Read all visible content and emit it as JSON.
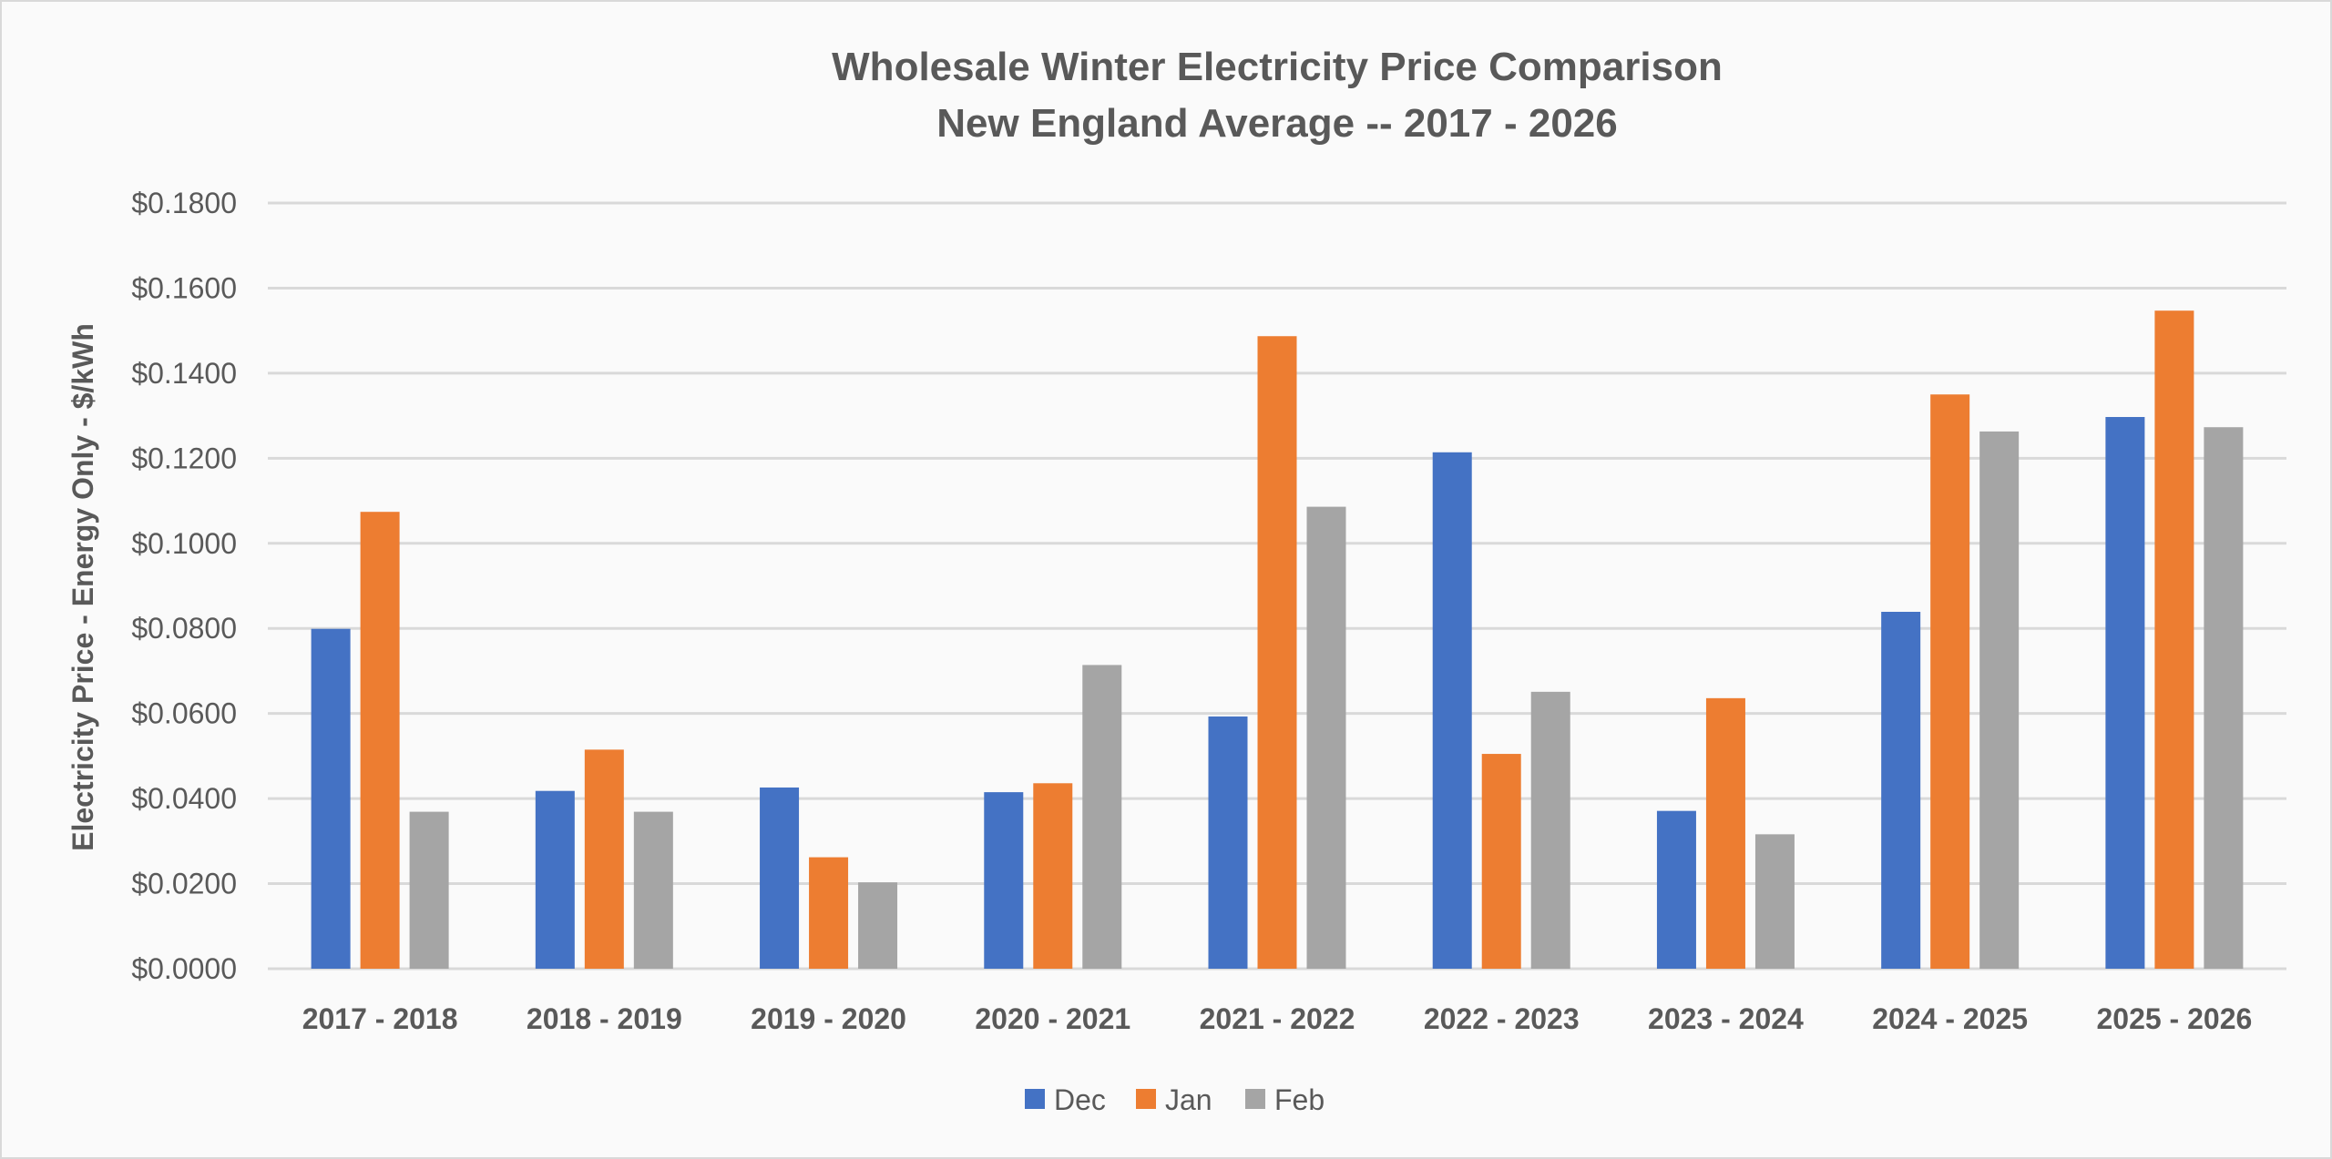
{
  "chart_data": {
    "type": "bar",
    "title": "Wholesale Winter Electricity Price Comparison",
    "subtitle": "New England Average -- 2017 - 2026",
    "xlabel": "",
    "ylabel": "Electricity Price - Energy Only - $/kWh",
    "ylim": [
      0,
      0.18
    ],
    "yticks": [
      0,
      0.02,
      0.04,
      0.06,
      0.08,
      0.1,
      0.12,
      0.14,
      0.16,
      0.18
    ],
    "ytick_labels": [
      "$0.0000",
      "$0.0200",
      "$0.0400",
      "$0.0600",
      "$0.0800",
      "$0.1000",
      "$0.1200",
      "$0.1400",
      "$0.1600",
      "$0.1800"
    ],
    "grid": true,
    "legend_position": "bottom",
    "categories": [
      "2017 - 2018",
      "2018 - 2019",
      "2019 - 2020",
      "2020 - 2021",
      "2021 - 2022",
      "2022 - 2023",
      "2023 - 2024",
      "2024 - 2025",
      "2025 - 2026"
    ],
    "series": [
      {
        "name": "Dec",
        "color": "#4472C4",
        "values": [
          0.0799,
          0.0418,
          0.0426,
          0.0415,
          0.0593,
          0.1214,
          0.0371,
          0.0839,
          0.1297
        ]
      },
      {
        "name": "Jan",
        "color": "#ED7D31",
        "values": [
          0.1074,
          0.0515,
          0.0262,
          0.0436,
          0.1487,
          0.0505,
          0.0636,
          0.135,
          0.1547
        ]
      },
      {
        "name": "Feb",
        "color": "#A5A5A5",
        "values": [
          0.0369,
          0.0369,
          0.0203,
          0.0714,
          0.1086,
          0.0651,
          0.0316,
          0.1263,
          0.1273
        ]
      }
    ]
  }
}
